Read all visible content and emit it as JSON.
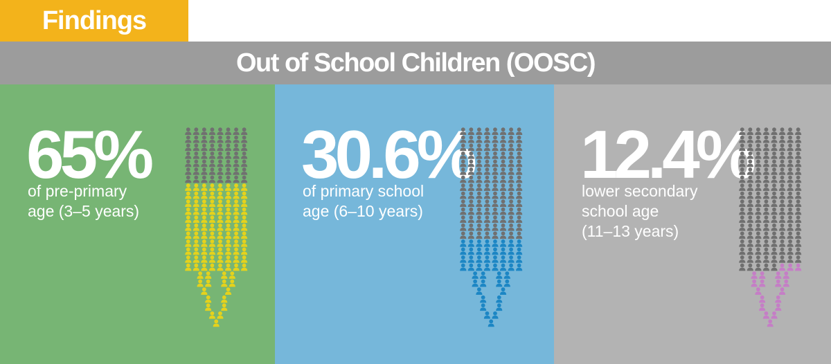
{
  "tag": "Findings",
  "header": "Out of School Children (OOSC)",
  "colors": {
    "tag": "#f3b31b",
    "header": "#9c9c9c",
    "icon_neutral": "#707070",
    "icon_neutral_on_grey": "#6f6f6f"
  },
  "chart_data": {
    "type": "pictograph",
    "panels": [
      {
        "value": "65%",
        "label_lines": [
          "of pre-primary",
          "age (3–5 years)"
        ],
        "percent": 65,
        "background": "#77b574",
        "highlight_color": "#e5d21c"
      },
      {
        "value": "30.6%",
        "label_lines": [
          "of primary school",
          "age (6–10 years)"
        ],
        "percent": 30.6,
        "background": "#76b7da",
        "highlight_color": "#1c86c4"
      },
      {
        "value": "12.4%",
        "label_lines": [
          "lower secondary",
          "school age",
          "(11–13 years)"
        ],
        "percent": 12.4,
        "background": "#b3b3b3",
        "highlight_color": "#c57ec6"
      }
    ]
  }
}
